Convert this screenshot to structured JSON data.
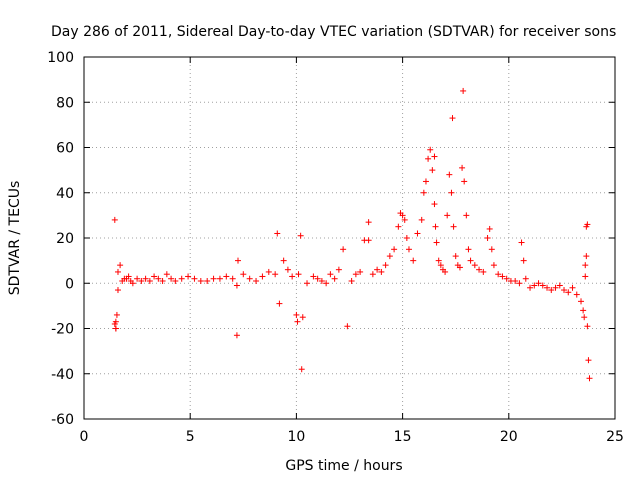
{
  "chart_data": {
    "type": "scatter",
    "title": "Day 286 of 2011, Sidereal Day-to-day VTEC variation (SDTVAR) for receiver sons",
    "xlabel": "GPS time / hours",
    "ylabel": "SDTVAR / TECUs",
    "xlim": [
      0,
      25
    ],
    "ylim": [
      -60,
      100
    ],
    "xticks": [
      0,
      5,
      10,
      15,
      20,
      25
    ],
    "yticks": [
      -60,
      -40,
      -20,
      0,
      20,
      40,
      60,
      80,
      100
    ],
    "grid": true,
    "marker": "+",
    "color": "#ff0000",
    "series": [
      {
        "name": "SDTVAR",
        "x": [
          1.45,
          1.5,
          1.5,
          1.55,
          1.6,
          1.6,
          1.7,
          1.8,
          1.9,
          2.0,
          2.1,
          2.2,
          2.3,
          2.5,
          2.7,
          2.9,
          3.1,
          3.3,
          3.5,
          3.7,
          3.9,
          4.1,
          4.3,
          4.6,
          4.9,
          5.2,
          5.5,
          5.8,
          6.1,
          6.4,
          6.7,
          7.0,
          7.2,
          7.25,
          7.5,
          7.8,
          8.1,
          8.4,
          8.7,
          9.0,
          9.1,
          9.2,
          9.4,
          9.6,
          9.8,
          10.0,
          10.1,
          10.2,
          10.25,
          10.5,
          10.8,
          11.0,
          11.2,
          11.4,
          11.6,
          11.8,
          12.0,
          12.2,
          12.4,
          12.6,
          12.8,
          13.0,
          13.2,
          13.4,
          13.6,
          13.8,
          14.0,
          14.2,
          14.4,
          14.6,
          14.8,
          14.9,
          15.0,
          15.1,
          15.2,
          15.3,
          15.5,
          15.7,
          15.9,
          16.0,
          16.1,
          16.2,
          16.3,
          16.4,
          16.5,
          16.55,
          16.6,
          16.7,
          16.8,
          16.9,
          17.0,
          17.1,
          17.2,
          17.3,
          17.4,
          17.5,
          17.6,
          17.7,
          17.8,
          17.9,
          18.0,
          18.1,
          18.2,
          18.4,
          18.6,
          18.8,
          19.0,
          19.1,
          19.2,
          19.3,
          19.5,
          19.7,
          19.9,
          20.1,
          20.3,
          20.5,
          20.6,
          20.7,
          20.8,
          21.0,
          21.2,
          21.4,
          21.6,
          21.8,
          22.0,
          22.2,
          22.4,
          22.6,
          22.8,
          23.0,
          23.2,
          23.4,
          23.5,
          23.55,
          23.6,
          23.65,
          23.7,
          23.7,
          23.75,
          23.8,
          17.35,
          17.85,
          16.5,
          10.3,
          10.05,
          7.2,
          1.45,
          1.5,
          13.4,
          23.65,
          23.6
        ],
        "y": [
          28,
          -17,
          -20,
          -14,
          5,
          -3,
          8,
          1,
          2,
          2,
          3,
          1,
          0,
          2,
          1,
          2,
          1,
          3,
          2,
          1,
          4,
          2,
          1,
          2,
          3,
          2,
          1,
          1,
          2,
          2,
          3,
          2,
          -1,
          10,
          4,
          2,
          1,
          3,
          5,
          4,
          22,
          -9,
          10,
          6,
          3,
          -14,
          4,
          21,
          -38,
          0,
          3,
          2,
          1,
          0,
          4,
          2,
          6,
          15,
          -19,
          1,
          4,
          5,
          19,
          27,
          4,
          6,
          5,
          8,
          12,
          15,
          25,
          31,
          30,
          28,
          20,
          15,
          10,
          22,
          28,
          40,
          45,
          55,
          59,
          50,
          35,
          25,
          18,
          10,
          8,
          6,
          5,
          30,
          48,
          40,
          25,
          12,
          8,
          7,
          51,
          45,
          30,
          15,
          10,
          8,
          6,
          5,
          20,
          24,
          15,
          8,
          4,
          3,
          2,
          1,
          1,
          0,
          18,
          10,
          2,
          -2,
          -1,
          0,
          -1,
          -2,
          -3,
          -2,
          -1,
          -3,
          -4,
          -2,
          -5,
          -8,
          -12,
          -15,
          8,
          12,
          -19,
          26,
          -34,
          -42,
          73,
          85,
          56,
          -15,
          -17,
          -23,
          -18,
          -20,
          19,
          25,
          3
        ]
      }
    ]
  }
}
